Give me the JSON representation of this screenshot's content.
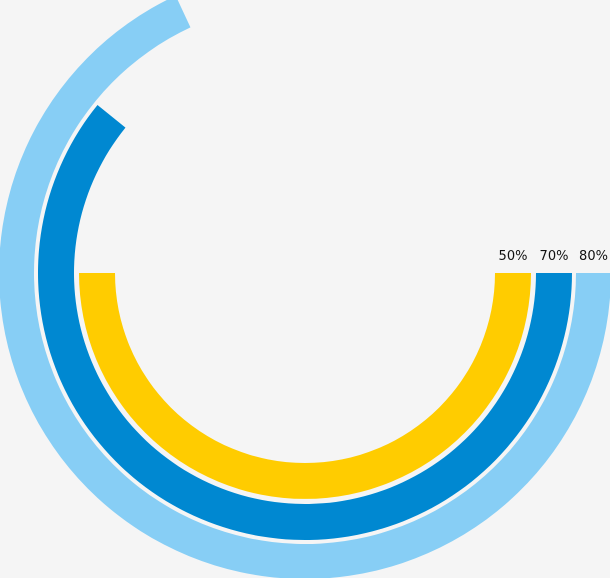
{
  "chart_data": {
    "type": "radial-bar",
    "series": [
      {
        "label": "50%",
        "value": 50,
        "color": "#FFCC00"
      },
      {
        "label": "70%",
        "value": 70,
        "color": "#0088D1"
      },
      {
        "label": "80%",
        "value": 80,
        "color": "#87CEF5"
      }
    ],
    "unit": "%",
    "background": "#F5F5F5"
  }
}
